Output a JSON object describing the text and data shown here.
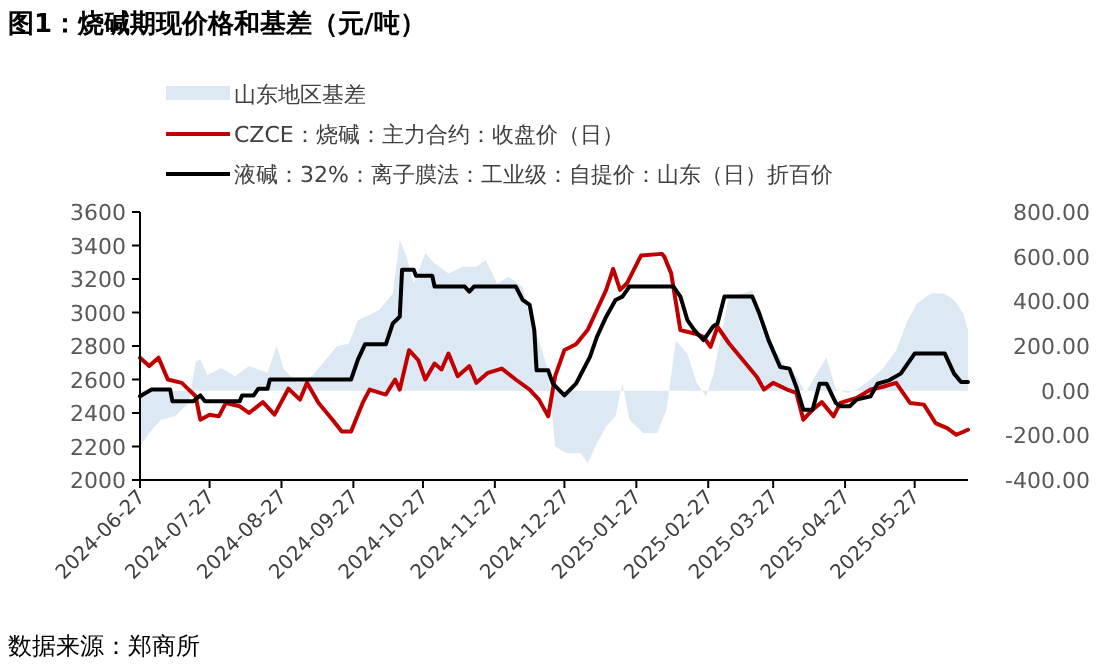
{
  "chart_data": {
    "type": "line",
    "title": "图1：烧碱期现价格和基差（元/吨）",
    "annotations": [
      "数据来源：郑商所"
    ],
    "legend": "top",
    "grid": false,
    "marker": "none",
    "line_style": "solid",
    "xlim": [
      "2024-06-27",
      "2025-06-19"
    ],
    "xticks": [
      "2024-06-27",
      "2024-07-27",
      "2024-08-27",
      "2024-09-27",
      "2024-10-27",
      "2024-11-27",
      "2024-12-27",
      "2025-01-27",
      "2025-02-27",
      "2025-03-27",
      "2025-04-27",
      "2025-05-27"
    ],
    "ylim": [
      2000,
      3600
    ],
    "yticks": [
      2000,
      2200,
      2400,
      2600,
      2800,
      3000,
      3200,
      3400,
      3600
    ],
    "y2lim": [
      -400,
      800
    ],
    "y2ticks": [
      {
        "value": -400,
        "label": "-400.00"
      },
      {
        "value": -200,
        "label": "-200.00"
      },
      {
        "value": 0,
        "label": "0.00"
      },
      {
        "value": 200,
        "label": "200.00"
      },
      {
        "value": 400,
        "label": "400.00"
      },
      {
        "value": 600,
        "label": "600.00"
      },
      {
        "value": 800,
        "label": "800.00"
      }
    ],
    "series": [
      {
        "name": "山东地区基差",
        "type": "area",
        "axis": "y2",
        "color": "#dde8f5",
        "x": [
          "2024-06-27",
          "2024-07-01",
          "2024-07-06",
          "2024-07-12",
          "2024-07-18",
          "2024-07-21",
          "2024-07-23",
          "2024-07-26",
          "2024-08-01",
          "2024-08-07",
          "2024-08-13",
          "2024-08-21",
          "2024-08-25",
          "2024-08-28",
          "2024-09-03",
          "2024-09-09",
          "2024-09-14",
          "2024-09-20",
          "2024-09-25",
          "2024-09-29",
          "2024-10-08",
          "2024-10-14",
          "2024-10-17",
          "2024-10-20",
          "2024-10-23",
          "2024-10-28",
          "2024-11-01",
          "2024-11-07",
          "2024-11-13",
          "2024-11-19",
          "2024-11-23",
          "2024-11-28",
          "2024-12-03",
          "2024-12-09",
          "2024-12-12",
          "2024-12-16",
          "2024-12-20",
          "2024-12-23",
          "2024-12-28",
          "2025-01-03",
          "2025-01-06",
          "2025-01-10",
          "2025-01-14",
          "2025-01-18",
          "2025-01-21",
          "2025-01-24",
          "2025-01-30",
          "2025-02-05",
          "2025-02-09",
          "2025-02-13",
          "2025-02-18",
          "2025-02-22",
          "2025-02-26",
          "2025-03-01",
          "2025-03-05",
          "2025-03-08",
          "2025-03-14",
          "2025-03-18",
          "2025-03-21",
          "2025-03-25",
          "2025-03-30",
          "2025-04-02",
          "2025-04-06",
          "2025-04-10",
          "2025-04-14",
          "2025-04-19",
          "2025-04-23",
          "2025-04-28",
          "2025-05-02",
          "2025-05-08",
          "2025-05-13",
          "2025-05-19",
          "2025-05-24",
          "2025-05-28",
          "2025-06-03",
          "2025-06-09",
          "2025-06-13",
          "2025-06-17",
          "2025-06-19"
        ],
        "values": [
          -250,
          -190,
          -130,
          -115,
          -55,
          130,
          140,
          70,
          100,
          65,
          110,
          80,
          200,
          95,
          35,
          65,
          125,
          200,
          210,
          315,
          360,
          435,
          675,
          600,
          480,
          615,
          570,
          525,
          555,
          555,
          585,
          480,
          510,
          465,
          330,
          225,
          90,
          -250,
          -280,
          -280,
          -325,
          -235,
          -160,
          -115,
          35,
          -130,
          -190,
          -190,
          -85,
          225,
          165,
          35,
          -25,
          65,
          270,
          420,
          435,
          450,
          300,
          210,
          150,
          90,
          65,
          -10,
          65,
          150,
          5,
          -10,
          5,
          50,
          95,
          180,
          315,
          390,
          435,
          435,
          405,
          345,
          270
        ]
      },
      {
        "name": "CZCE：烧碱：主力合约：收盘价（日）",
        "color": "#c00000",
        "x": [
          "2024-06-27",
          "2024-07-01",
          "2024-07-05",
          "2024-07-09",
          "2024-07-15",
          "2024-07-21",
          "2024-07-23",
          "2024-07-27",
          "2024-07-31",
          "2024-08-03",
          "2024-08-09",
          "2024-08-13",
          "2024-08-19",
          "2024-08-24",
          "2024-08-30",
          "2024-09-04",
          "2024-09-07",
          "2024-09-12",
          "2024-09-18",
          "2024-09-22",
          "2024-09-26",
          "2024-10-01",
          "2024-10-04",
          "2024-10-11",
          "2024-10-15",
          "2024-10-17",
          "2024-10-21",
          "2024-10-25",
          "2024-10-28",
          "2024-11-01",
          "2024-11-04",
          "2024-11-07",
          "2024-11-11",
          "2024-11-16",
          "2024-11-19",
          "2024-11-24",
          "2024-11-30",
          "2024-12-06",
          "2024-12-12",
          "2024-12-16",
          "2024-12-20",
          "2024-12-23",
          "2024-12-27",
          "2025-01-01",
          "2025-01-06",
          "2025-01-10",
          "2025-01-14",
          "2025-01-17",
          "2025-01-20",
          "2025-01-23",
          "2025-01-29",
          "2025-02-07",
          "2025-02-08",
          "2025-02-11",
          "2025-02-15",
          "2025-02-21",
          "2025-02-25",
          "2025-02-28",
          "2025-03-03",
          "2025-03-08",
          "2025-03-14",
          "2025-03-20",
          "2025-03-23",
          "2025-03-27",
          "2025-04-02",
          "2025-04-06",
          "2025-04-09",
          "2025-04-13",
          "2025-04-17",
          "2025-04-22",
          "2025-04-25",
          "2025-05-02",
          "2025-05-08",
          "2025-05-13",
          "2025-05-19",
          "2025-05-25",
          "2025-05-31",
          "2025-06-05",
          "2025-06-10",
          "2025-06-14",
          "2025-06-19"
        ],
        "values": [
          2730,
          2680,
          2730,
          2600,
          2580,
          2500,
          2360,
          2390,
          2380,
          2460,
          2440,
          2400,
          2465,
          2390,
          2545,
          2480,
          2580,
          2460,
          2360,
          2290,
          2290,
          2460,
          2540,
          2510,
          2600,
          2540,
          2775,
          2715,
          2600,
          2695,
          2660,
          2755,
          2620,
          2680,
          2580,
          2640,
          2665,
          2600,
          2540,
          2480,
          2380,
          2620,
          2776,
          2810,
          2895,
          3015,
          3135,
          3260,
          3135,
          3175,
          3340,
          3350,
          3335,
          3235,
          2895,
          2875,
          2855,
          2795,
          2915,
          2815,
          2715,
          2615,
          2540,
          2580,
          2540,
          2520,
          2360,
          2420,
          2465,
          2380,
          2460,
          2490,
          2540,
          2555,
          2580,
          2460,
          2450,
          2340,
          2310,
          2270,
          2300
        ]
      },
      {
        "name": "液碱：32%：离子膜法：工业级：自提价：山东（日）折百价",
        "color": "#000000",
        "x": [
          "2024-06-27",
          "2024-07-02",
          "2024-07-10",
          "2024-07-11",
          "2024-07-20",
          "2024-07-23",
          "2024-07-25",
          "2024-08-09",
          "2024-08-10",
          "2024-08-15",
          "2024-08-17",
          "2024-08-21",
          "2024-08-22",
          "2024-09-26",
          "2024-09-29",
          "2024-10-02",
          "2024-10-11",
          "2024-10-14",
          "2024-10-17",
          "2024-10-18",
          "2024-10-23",
          "2024-10-24",
          "2024-10-31",
          "2024-11-01",
          "2024-11-14",
          "2024-11-16",
          "2024-11-18",
          "2024-12-06",
          "2024-12-09",
          "2024-12-12",
          "2024-12-14",
          "2024-12-15",
          "2024-12-20",
          "2024-12-22",
          "2024-12-27",
          "2025-01-01",
          "2025-01-04",
          "2025-01-07",
          "2025-01-10",
          "2025-01-14",
          "2025-01-18",
          "2025-01-21",
          "2025-01-24",
          "2025-02-12",
          "2025-02-15",
          "2025-02-18",
          "2025-02-21",
          "2025-02-25",
          "2025-03-01",
          "2025-03-03",
          "2025-03-06",
          "2025-03-18",
          "2025-03-21",
          "2025-03-25",
          "2025-03-30",
          "2025-04-03",
          "2025-04-06",
          "2025-04-09",
          "2025-04-13",
          "2025-04-16",
          "2025-04-19",
          "2025-04-23",
          "2025-04-25",
          "2025-04-29",
          "2025-05-02",
          "2025-05-08",
          "2025-05-11",
          "2025-05-16",
          "2025-05-21",
          "2025-05-27",
          "2025-06-09",
          "2025-06-13",
          "2025-06-16",
          "2025-06-19"
        ],
        "values": [
          2500,
          2540,
          2540,
          2470,
          2470,
          2505,
          2470,
          2470,
          2505,
          2505,
          2545,
          2545,
          2600,
          2600,
          2720,
          2810,
          2810,
          2935,
          2975,
          3255,
          3255,
          3220,
          3220,
          3155,
          3155,
          3125,
          3155,
          3155,
          3075,
          3045,
          2895,
          2655,
          2655,
          2575,
          2505,
          2575,
          2655,
          2735,
          2855,
          2975,
          3075,
          3095,
          3155,
          3155,
          3095,
          2955,
          2895,
          2835,
          2915,
          2935,
          3095,
          3095,
          2995,
          2835,
          2675,
          2665,
          2555,
          2420,
          2420,
          2575,
          2575,
          2460,
          2440,
          2440,
          2480,
          2500,
          2575,
          2595,
          2635,
          2755,
          2755,
          2635,
          2585,
          2585
        ]
      }
    ]
  }
}
